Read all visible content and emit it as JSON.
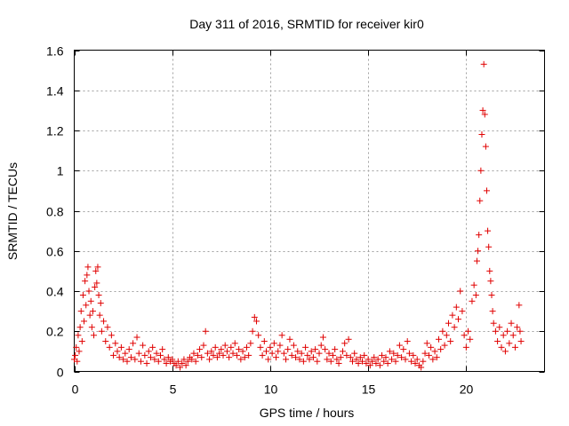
{
  "chart_data": {
    "type": "scatter",
    "title": "Day 311 of 2016, SRMTID for receiver kir0",
    "xlabel": "GPS time / hours",
    "ylabel": "SRMTID / TECUs",
    "xlim": [
      0,
      24
    ],
    "ylim": [
      0,
      1.6
    ],
    "xticks": [
      0,
      5,
      10,
      15,
      20
    ],
    "xtick_labels": [
      "0",
      "5",
      "10",
      "15",
      "20"
    ],
    "yticks": [
      0,
      0.2,
      0.4,
      0.6,
      0.8,
      1.0,
      1.2,
      1.4,
      1.6
    ],
    "ytick_labels": [
      "0",
      "0.2",
      "0.4",
      "0.6",
      "0.8",
      "1",
      "1.2",
      "1.4",
      "1.6"
    ],
    "grid": true,
    "marker": "+",
    "color": "#e00000",
    "series": [
      {
        "name": "kir0",
        "points": [
          [
            0.0,
            0.06
          ],
          [
            0.05,
            0.08
          ],
          [
            0.1,
            0.12
          ],
          [
            0.15,
            0.05
          ],
          [
            0.2,
            0.18
          ],
          [
            0.25,
            0.1
          ],
          [
            0.3,
            0.22
          ],
          [
            0.35,
            0.3
          ],
          [
            0.4,
            0.15
          ],
          [
            0.45,
            0.38
          ],
          [
            0.5,
            0.25
          ],
          [
            0.55,
            0.45
          ],
          [
            0.6,
            0.33
          ],
          [
            0.65,
            0.48
          ],
          [
            0.7,
            0.52
          ],
          [
            0.75,
            0.4
          ],
          [
            0.8,
            0.28
          ],
          [
            0.85,
            0.35
          ],
          [
            0.9,
            0.22
          ],
          [
            0.95,
            0.3
          ],
          [
            1.0,
            0.18
          ],
          [
            1.05,
            0.42
          ],
          [
            1.1,
            0.5
          ],
          [
            1.15,
            0.44
          ],
          [
            1.2,
            0.52
          ],
          [
            1.25,
            0.38
          ],
          [
            1.3,
            0.28
          ],
          [
            1.35,
            0.34
          ],
          [
            1.4,
            0.2
          ],
          [
            1.5,
            0.25
          ],
          [
            1.6,
            0.15
          ],
          [
            1.7,
            0.22
          ],
          [
            1.8,
            0.12
          ],
          [
            1.9,
            0.18
          ],
          [
            2.0,
            0.08
          ],
          [
            2.1,
            0.14
          ],
          [
            2.2,
            0.1
          ],
          [
            2.3,
            0.07
          ],
          [
            2.4,
            0.12
          ],
          [
            2.5,
            0.06
          ],
          [
            2.6,
            0.09
          ],
          [
            2.7,
            0.05
          ],
          [
            2.8,
            0.11
          ],
          [
            2.9,
            0.07
          ],
          [
            3.0,
            0.14
          ],
          [
            3.1,
            0.06
          ],
          [
            3.2,
            0.17
          ],
          [
            3.3,
            0.09
          ],
          [
            3.4,
            0.05
          ],
          [
            3.5,
            0.13
          ],
          [
            3.6,
            0.08
          ],
          [
            3.7,
            0.04
          ],
          [
            3.8,
            0.1
          ],
          [
            3.9,
            0.07
          ],
          [
            4.0,
            0.12
          ],
          [
            4.1,
            0.06
          ],
          [
            4.2,
            0.09
          ],
          [
            4.3,
            0.05
          ],
          [
            4.4,
            0.08
          ],
          [
            4.5,
            0.11
          ],
          [
            4.6,
            0.06
          ],
          [
            4.7,
            0.04
          ],
          [
            4.8,
            0.07
          ],
          [
            4.9,
            0.05
          ],
          [
            5.0,
            0.06
          ],
          [
            5.1,
            0.04
          ],
          [
            5.2,
            0.03
          ],
          [
            5.3,
            0.05
          ],
          [
            5.4,
            0.02
          ],
          [
            5.5,
            0.04
          ],
          [
            5.6,
            0.06
          ],
          [
            5.7,
            0.03
          ],
          [
            5.8,
            0.05
          ],
          [
            5.9,
            0.07
          ],
          [
            6.0,
            0.06
          ],
          [
            6.1,
            0.09
          ],
          [
            6.2,
            0.05
          ],
          [
            6.3,
            0.08
          ],
          [
            6.4,
            0.11
          ],
          [
            6.5,
            0.07
          ],
          [
            6.6,
            0.13
          ],
          [
            6.7,
            0.2
          ],
          [
            6.8,
            0.09
          ],
          [
            6.9,
            0.06
          ],
          [
            7.0,
            0.1
          ],
          [
            7.1,
            0.08
          ],
          [
            7.2,
            0.12
          ],
          [
            7.3,
            0.07
          ],
          [
            7.4,
            0.09
          ],
          [
            7.5,
            0.11
          ],
          [
            7.6,
            0.08
          ],
          [
            7.7,
            0.13
          ],
          [
            7.8,
            0.1
          ],
          [
            7.9,
            0.07
          ],
          [
            8.0,
            0.12
          ],
          [
            8.1,
            0.09
          ],
          [
            8.2,
            0.14
          ],
          [
            8.3,
            0.08
          ],
          [
            8.4,
            0.11
          ],
          [
            8.5,
            0.06
          ],
          [
            8.6,
            0.1
          ],
          [
            8.7,
            0.07
          ],
          [
            8.8,
            0.12
          ],
          [
            8.9,
            0.08
          ],
          [
            9.0,
            0.14
          ],
          [
            9.1,
            0.2
          ],
          [
            9.2,
            0.27
          ],
          [
            9.3,
            0.25
          ],
          [
            9.4,
            0.18
          ],
          [
            9.5,
            0.12
          ],
          [
            9.6,
            0.08
          ],
          [
            9.7,
            0.15
          ],
          [
            9.8,
            0.1
          ],
          [
            9.9,
            0.06
          ],
          [
            10.0,
            0.12
          ],
          [
            10.1,
            0.09
          ],
          [
            10.2,
            0.14
          ],
          [
            10.3,
            0.07
          ],
          [
            10.4,
            0.1
          ],
          [
            10.5,
            0.13
          ],
          [
            10.6,
            0.18
          ],
          [
            10.7,
            0.09
          ],
          [
            10.8,
            0.06
          ],
          [
            10.9,
            0.11
          ],
          [
            11.0,
            0.16
          ],
          [
            11.1,
            0.08
          ],
          [
            11.2,
            0.13
          ],
          [
            11.3,
            0.07
          ],
          [
            11.4,
            0.1
          ],
          [
            11.5,
            0.06
          ],
          [
            11.6,
            0.09
          ],
          [
            11.7,
            0.05
          ],
          [
            11.8,
            0.12
          ],
          [
            11.9,
            0.08
          ],
          [
            12.0,
            0.06
          ],
          [
            12.1,
            0.1
          ],
          [
            12.2,
            0.07
          ],
          [
            12.3,
            0.11
          ],
          [
            12.4,
            0.05
          ],
          [
            12.5,
            0.09
          ],
          [
            12.6,
            0.13
          ],
          [
            12.7,
            0.17
          ],
          [
            12.8,
            0.11
          ],
          [
            12.9,
            0.06
          ],
          [
            13.0,
            0.09
          ],
          [
            13.1,
            0.05
          ],
          [
            13.2,
            0.08
          ],
          [
            13.3,
            0.11
          ],
          [
            13.4,
            0.06
          ],
          [
            13.5,
            0.04
          ],
          [
            13.6,
            0.07
          ],
          [
            13.7,
            0.1
          ],
          [
            13.8,
            0.14
          ],
          [
            13.9,
            0.08
          ],
          [
            14.0,
            0.16
          ],
          [
            14.1,
            0.07
          ],
          [
            14.2,
            0.05
          ],
          [
            14.3,
            0.09
          ],
          [
            14.4,
            0.06
          ],
          [
            14.5,
            0.04
          ],
          [
            14.6,
            0.07
          ],
          [
            14.7,
            0.05
          ],
          [
            14.8,
            0.08
          ],
          [
            14.9,
            0.04
          ],
          [
            15.0,
            0.06
          ],
          [
            15.1,
            0.03
          ],
          [
            15.2,
            0.05
          ],
          [
            15.3,
            0.07
          ],
          [
            15.4,
            0.04
          ],
          [
            15.5,
            0.06
          ],
          [
            15.6,
            0.03
          ],
          [
            15.7,
            0.08
          ],
          [
            15.8,
            0.05
          ],
          [
            15.9,
            0.07
          ],
          [
            16.0,
            0.04
          ],
          [
            16.1,
            0.1
          ],
          [
            16.2,
            0.06
          ],
          [
            16.3,
            0.09
          ],
          [
            16.4,
            0.05
          ],
          [
            16.5,
            0.08
          ],
          [
            16.6,
            0.13
          ],
          [
            16.7,
            0.07
          ],
          [
            16.8,
            0.11
          ],
          [
            16.9,
            0.06
          ],
          [
            17.0,
            0.15
          ],
          [
            17.1,
            0.09
          ],
          [
            17.2,
            0.05
          ],
          [
            17.3,
            0.08
          ],
          [
            17.4,
            0.04
          ],
          [
            17.5,
            0.06
          ],
          [
            17.6,
            0.03
          ],
          [
            17.7,
            0.02
          ],
          [
            17.8,
            0.05
          ],
          [
            17.9,
            0.09
          ],
          [
            18.0,
            0.14
          ],
          [
            18.1,
            0.08
          ],
          [
            18.2,
            0.12
          ],
          [
            18.3,
            0.06
          ],
          [
            18.4,
            0.1
          ],
          [
            18.5,
            0.07
          ],
          [
            18.6,
            0.16
          ],
          [
            18.7,
            0.11
          ],
          [
            18.8,
            0.2
          ],
          [
            18.9,
            0.13
          ],
          [
            19.0,
            0.18
          ],
          [
            19.1,
            0.24
          ],
          [
            19.2,
            0.15
          ],
          [
            19.3,
            0.28
          ],
          [
            19.4,
            0.22
          ],
          [
            19.5,
            0.32
          ],
          [
            19.6,
            0.26
          ],
          [
            19.7,
            0.4
          ],
          [
            19.8,
            0.3
          ],
          [
            19.9,
            0.18
          ],
          [
            20.0,
            0.12
          ],
          [
            20.1,
            0.2
          ],
          [
            20.2,
            0.16
          ],
          [
            20.3,
            0.35
          ],
          [
            20.4,
            0.43
          ],
          [
            20.5,
            0.38
          ],
          [
            20.55,
            0.55
          ],
          [
            20.6,
            0.6
          ],
          [
            20.65,
            0.68
          ],
          [
            20.7,
            0.85
          ],
          [
            20.75,
            1.0
          ],
          [
            20.8,
            1.18
          ],
          [
            20.85,
            1.3
          ],
          [
            20.9,
            1.53
          ],
          [
            20.95,
            1.28
          ],
          [
            21.0,
            1.12
          ],
          [
            21.05,
            0.9
          ],
          [
            21.1,
            0.7
          ],
          [
            21.15,
            0.62
          ],
          [
            21.2,
            0.5
          ],
          [
            21.25,
            0.45
          ],
          [
            21.3,
            0.38
          ],
          [
            21.35,
            0.3
          ],
          [
            21.4,
            0.24
          ],
          [
            21.5,
            0.2
          ],
          [
            21.6,
            0.15
          ],
          [
            21.7,
            0.22
          ],
          [
            21.8,
            0.12
          ],
          [
            21.9,
            0.18
          ],
          [
            22.0,
            0.1
          ],
          [
            22.1,
            0.2
          ],
          [
            22.2,
            0.14
          ],
          [
            22.3,
            0.24
          ],
          [
            22.4,
            0.18
          ],
          [
            22.5,
            0.12
          ],
          [
            22.6,
            0.22
          ],
          [
            22.7,
            0.33
          ],
          [
            22.75,
            0.2
          ],
          [
            22.8,
            0.15
          ]
        ]
      }
    ]
  }
}
